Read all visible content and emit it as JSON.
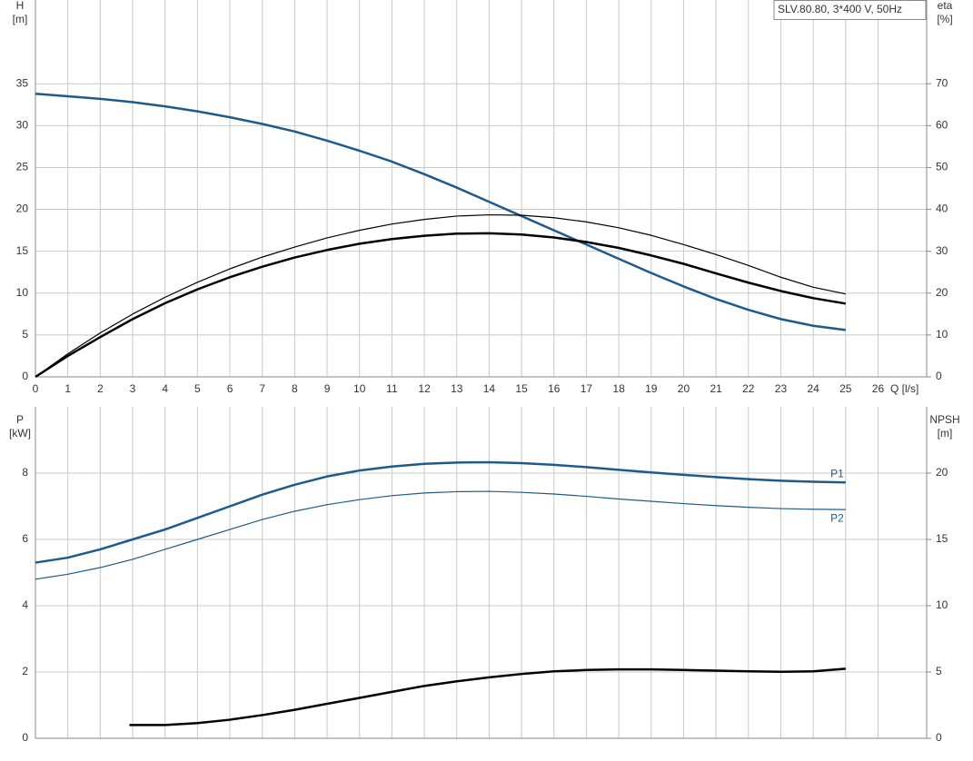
{
  "chart_data": [
    {
      "type": "line",
      "title": "SLV.80.80, 3*400 V, 50Hz",
      "y_label": [
        "H",
        "[m]"
      ],
      "y2_label": [
        "eta",
        "[%]"
      ],
      "x_label": "Q [l/s]",
      "xlim": [
        0,
        27.5
      ],
      "xticks": [
        0,
        1,
        2,
        3,
        4,
        5,
        6,
        7,
        8,
        9,
        10,
        11,
        12,
        13,
        14,
        15,
        16,
        17,
        18,
        19,
        20,
        21,
        22,
        23,
        24,
        25,
        26
      ],
      "xtick_labels": true,
      "ylim": [
        0,
        45
      ],
      "yticks": [
        0,
        5,
        10,
        15,
        20,
        25,
        30,
        35
      ],
      "y2lim": [
        0,
        90
      ],
      "y2ticks": [
        0,
        10,
        20,
        30,
        40,
        50,
        60,
        70
      ],
      "grid": true,
      "x": [
        0,
        1,
        2,
        3,
        4,
        5,
        6,
        7,
        8,
        9,
        10,
        11,
        12,
        13,
        14,
        15,
        16,
        17,
        18,
        19,
        20,
        21,
        22,
        23,
        24,
        25
      ],
      "series": [
        {
          "color": "#1f5a8c",
          "line_width": 2.5,
          "axis": "y",
          "values": [
            33.8,
            33.5,
            33.2,
            32.8,
            32.3,
            31.7,
            31.0,
            30.2,
            29.3,
            28.2,
            27.0,
            25.7,
            24.2,
            22.6,
            20.9,
            19.2,
            17.5,
            15.8,
            14.1,
            12.4,
            10.8,
            9.3,
            8.0,
            6.9,
            6.1,
            5.6
          ]
        },
        {
          "color": "#000000",
          "line_width": 1.2,
          "axis": "y2",
          "values": [
            0,
            5.5,
            10.5,
            15,
            19,
            22.6,
            25.8,
            28.6,
            31,
            33.2,
            35,
            36.5,
            37.6,
            38.4,
            38.7,
            38.6,
            38,
            37,
            35.6,
            33.8,
            31.6,
            29.2,
            26.6,
            23.8,
            21.4,
            19.8
          ]
        },
        {
          "color": "#000000",
          "line_width": 2.5,
          "axis": "y2",
          "values": [
            0,
            5,
            9.5,
            13.8,
            17.6,
            20.9,
            23.8,
            26.3,
            28.5,
            30.3,
            31.8,
            32.9,
            33.7,
            34.2,
            34.3,
            34,
            33.3,
            32.2,
            30.8,
            29,
            27,
            24.7,
            22.5,
            20.5,
            18.8,
            17.5
          ]
        }
      ]
    },
    {
      "type": "line",
      "y_label": [
        "P",
        "[kW]"
      ],
      "y2_label": [
        "NPSH",
        "[m]"
      ],
      "xlim": [
        0,
        27.5
      ],
      "xticks": [
        0,
        1,
        2,
        3,
        4,
        5,
        6,
        7,
        8,
        9,
        10,
        11,
        12,
        13,
        14,
        15,
        16,
        17,
        18,
        19,
        20,
        21,
        22,
        23,
        24,
        25,
        26
      ],
      "xtick_labels": false,
      "ylim": [
        0,
        10
      ],
      "yticks": [
        0,
        2,
        4,
        6,
        8
      ],
      "y2lim": [
        0,
        25
      ],
      "y2ticks": [
        0,
        5,
        10,
        15,
        20
      ],
      "grid": true,
      "x": [
        0,
        1,
        2,
        3,
        4,
        5,
        6,
        7,
        8,
        9,
        10,
        11,
        12,
        13,
        14,
        15,
        16,
        17,
        18,
        19,
        20,
        21,
        22,
        23,
        24,
        25
      ],
      "series": [
        {
          "name": "P1",
          "color": "#1f5a8c",
          "line_width": 2.5,
          "axis": "y",
          "values": [
            5.3,
            5.45,
            5.7,
            6.0,
            6.3,
            6.65,
            7.0,
            7.35,
            7.65,
            7.9,
            8.08,
            8.2,
            8.28,
            8.32,
            8.33,
            8.3,
            8.25,
            8.18,
            8.1,
            8.02,
            7.95,
            7.88,
            7.82,
            7.77,
            7.74,
            7.72
          ]
        },
        {
          "name": "P2",
          "color": "#1f5a8c",
          "line_width": 1.2,
          "axis": "y",
          "values": [
            4.8,
            4.95,
            5.15,
            5.4,
            5.7,
            6.0,
            6.3,
            6.6,
            6.85,
            7.05,
            7.2,
            7.32,
            7.4,
            7.44,
            7.45,
            7.42,
            7.37,
            7.3,
            7.22,
            7.15,
            7.08,
            7.02,
            6.97,
            6.93,
            6.91,
            6.9
          ]
        },
        {
          "color": "#000000",
          "line_width": 2.5,
          "axis": "y2",
          "x": [
            2.9,
            4,
            5,
            6,
            7,
            8,
            9,
            10,
            11,
            12,
            13,
            14,
            15,
            16,
            17,
            18,
            19,
            20,
            21,
            22,
            23,
            24,
            25
          ],
          "values": [
            1.0,
            1.0,
            1.15,
            1.4,
            1.75,
            2.15,
            2.6,
            3.05,
            3.5,
            3.95,
            4.3,
            4.6,
            4.85,
            5.05,
            5.15,
            5.2,
            5.2,
            5.15,
            5.1,
            5.05,
            5.02,
            5.05,
            5.25
          ]
        }
      ]
    }
  ]
}
